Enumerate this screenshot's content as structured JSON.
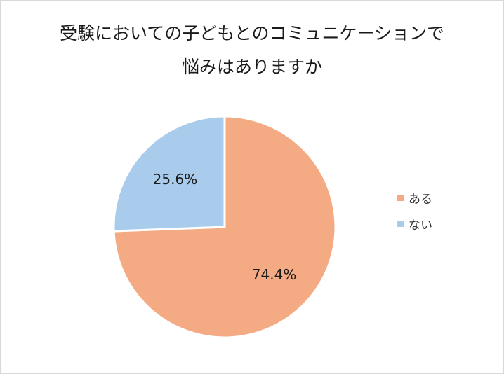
{
  "chart_data": {
    "type": "pie",
    "title": [
      "受験においての子どもとのコミュニケーションで",
      "悩みはありますか"
    ],
    "categories": [
      "ある",
      "ない"
    ],
    "values": [
      74.4,
      25.6
    ],
    "data_labels": [
      "74.4%",
      "25.6%"
    ],
    "colors": [
      "#F4AB84",
      "#A9CBEC"
    ],
    "start_angle": "12 o'clock, clockwise",
    "legend_position": "right"
  }
}
